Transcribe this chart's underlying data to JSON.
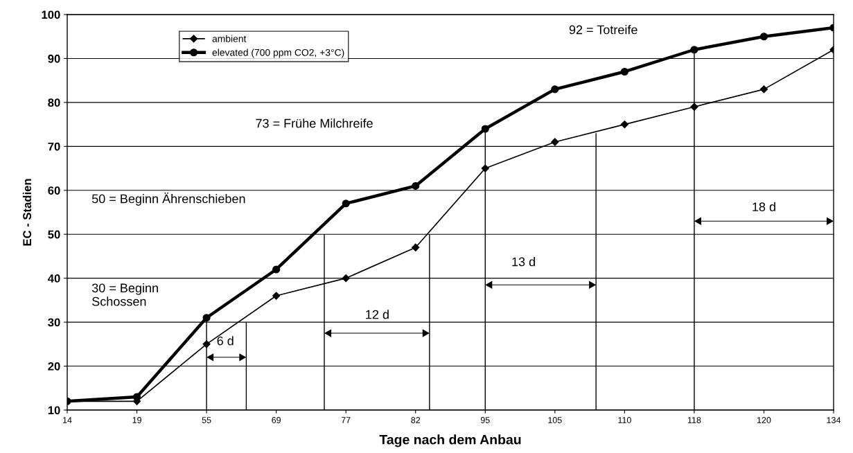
{
  "chart_data": {
    "type": "line",
    "xlabel": "Tage nach dem Anbau",
    "ylabel": "EC - Stadien",
    "categories": [
      "14",
      "19",
      "55",
      "69",
      "77",
      "82",
      "95",
      "105",
      "110",
      "118",
      "120",
      "134"
    ],
    "series": [
      {
        "name": "ambient",
        "color": "#000000",
        "marker": "diamond",
        "values": [
          12,
          12,
          25,
          36,
          40,
          47,
          65,
          71,
          75,
          79,
          83,
          92
        ]
      },
      {
        "name": "elevated (700 ppm CO2, +3°C)",
        "color": "#000000",
        "marker": "circle",
        "values": [
          12,
          13,
          31,
          42,
          57,
          61,
          74,
          83,
          87,
          92,
          95,
          97
        ]
      }
    ],
    "ylim": [
      10,
      100
    ],
    "yticks": [
      10,
      20,
      30,
      40,
      50,
      60,
      70,
      80,
      90,
      100
    ],
    "ref_lines": [
      {
        "axis": "x",
        "value": "55"
      },
      {
        "axis": "x",
        "value": "95"
      },
      {
        "axis": "x",
        "value": "118"
      }
    ],
    "grid": "y",
    "legend": "top left",
    "line_style": "solid",
    "annotations": [
      "92 = Totreife",
      "73 = Frühe Milchreife",
      "50 = Beginn Ährenschieben",
      "30 = Beginn\nSchossen",
      "6 d",
      "12 d",
      "13 d",
      "18 d"
    ]
  }
}
